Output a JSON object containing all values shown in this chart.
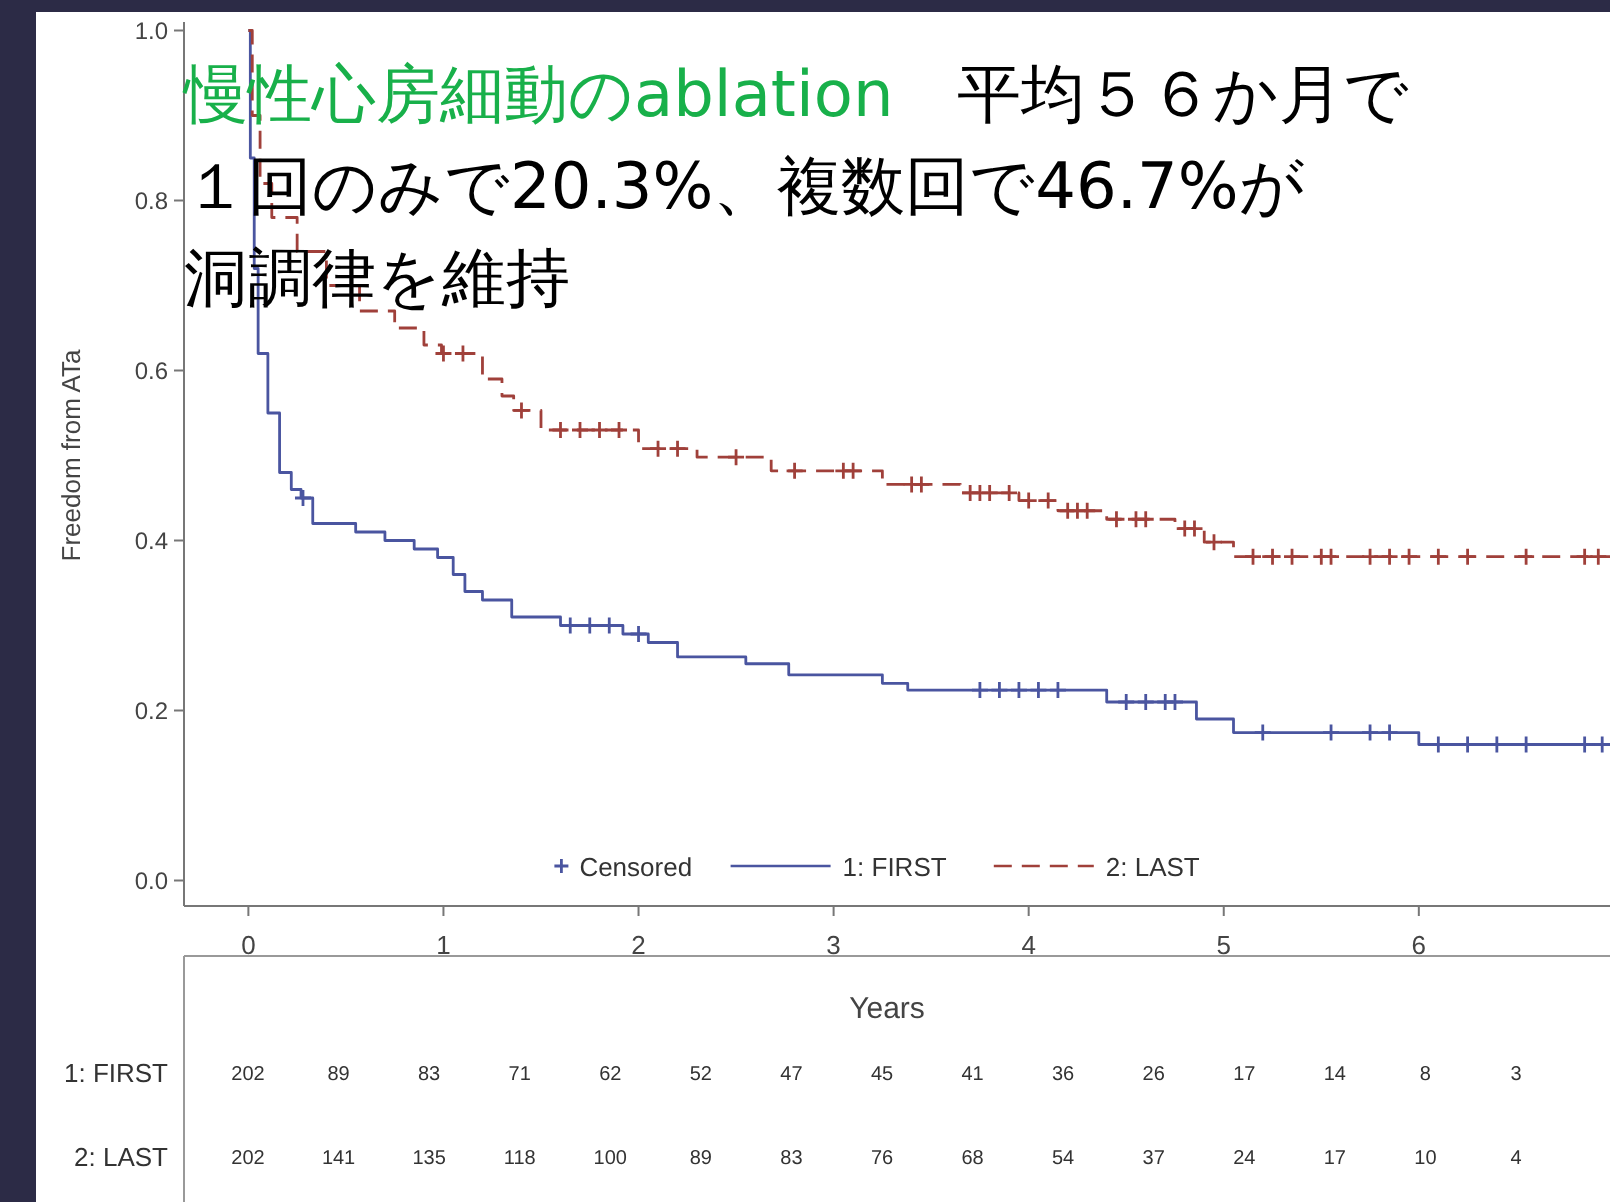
{
  "chart_data": [
    {
      "type": "step",
      "title": "慢性心房細動のablation",
      "subtitle": "平均５６か月で",
      "annotations": [
        "１回のみで20.3%、複数回で46.7%が",
        "洞調律を維持"
      ],
      "xlabel": "Years",
      "ylabel": "Freedom from ATa",
      "xlim": [
        -0.33,
        6.98
      ],
      "ylim": [
        -0.03,
        1.01
      ],
      "xticks": [
        0,
        1,
        2,
        3,
        4,
        5,
        6
      ],
      "yticks": [
        {
          "value": 0,
          "label": "0.0"
        },
        0.2,
        0.4,
        0.6,
        0.8,
        {
          "value": 1,
          "label": "1.0"
        }
      ],
      "grid": false,
      "legend": "bottom",
      "series": [
        {
          "name": "Censored",
          "type": "scatter",
          "marker": "cross",
          "color": "#4a55a0",
          "x": [
            0.28,
            1.65,
            1.75,
            1.85,
            2.0,
            3.75,
            3.85,
            3.95,
            4.05,
            4.15,
            4.5,
            4.6,
            4.7,
            4.75,
            5.2,
            5.55,
            5.75,
            5.85,
            6.1,
            6.25,
            6.4,
            6.55,
            6.85,
            6.94
          ],
          "values": [
            0.45,
            0.3,
            0.3,
            0.3,
            0.29,
            0.224,
            0.224,
            0.224,
            0.224,
            0.224,
            0.21,
            0.21,
            0.21,
            0.21,
            0.174,
            0.174,
            0.174,
            0.174,
            0.16,
            0.16,
            0.16,
            0.16,
            0.16,
            0.16
          ]
        },
        {
          "name": "1: FIRST",
          "line_style": "solid",
          "color": "#4a55a0",
          "x": [
            0,
            0.01,
            0.03,
            0.05,
            0.1,
            0.16,
            0.22,
            0.27,
            0.33,
            0.55,
            0.7,
            0.85,
            0.97,
            1.05,
            1.11,
            1.2,
            1.35,
            1.6,
            1.92,
            2.05,
            2.2,
            2.55,
            2.77,
            3.25,
            3.38,
            4.4,
            4.86,
            5.05,
            6.0,
            6.98
          ],
          "values": [
            1.0,
            0.85,
            0.72,
            0.62,
            0.55,
            0.48,
            0.46,
            0.45,
            0.42,
            0.41,
            0.4,
            0.39,
            0.38,
            0.36,
            0.34,
            0.33,
            0.31,
            0.3,
            0.29,
            0.28,
            0.263,
            0.255,
            0.242,
            0.232,
            0.224,
            0.21,
            0.19,
            0.174,
            0.16,
            0.16
          ]
        },
        {
          "name": "2: LAST",
          "line_style": "dashed",
          "color": "#a0403a",
          "x": [
            0,
            0.02,
            0.06,
            0.12,
            0.25,
            0.4,
            0.57,
            0.75,
            0.9,
            0.99,
            1.2,
            1.3,
            1.36,
            1.5,
            2.0,
            2.3,
            2.68,
            3.25,
            3.65,
            3.95,
            4.15,
            4.4,
            4.75,
            4.9,
            5.05,
            6.98
          ],
          "values": [
            1.0,
            0.9,
            0.82,
            0.78,
            0.74,
            0.7,
            0.67,
            0.65,
            0.63,
            0.62,
            0.59,
            0.57,
            0.553,
            0.53,
            0.508,
            0.498,
            0.482,
            0.466,
            0.456,
            0.447,
            0.435,
            0.425,
            0.414,
            0.398,
            0.381,
            0.381
          ]
        },
        {
          "type": "scatter",
          "marker": "cross",
          "color": "#a0403a",
          "x": [
            1.0,
            1.1,
            1.4,
            1.6,
            1.7,
            1.8,
            1.9,
            2.1,
            2.2,
            2.5,
            2.8,
            3.05,
            3.1,
            3.4,
            3.45,
            3.7,
            3.75,
            3.8,
            3.9,
            4.0,
            4.1,
            4.2,
            4.25,
            4.3,
            4.45,
            4.55,
            4.6,
            4.8,
            4.85,
            4.95,
            5.15,
            5.25,
            5.35,
            5.5,
            5.55,
            5.75,
            5.85,
            5.95,
            6.1,
            6.25,
            6.55,
            6.85,
            6.92
          ],
          "values": [
            0.62,
            0.62,
            0.553,
            0.53,
            0.53,
            0.53,
            0.53,
            0.508,
            0.508,
            0.498,
            0.482,
            0.482,
            0.482,
            0.466,
            0.466,
            0.456,
            0.456,
            0.456,
            0.456,
            0.447,
            0.447,
            0.435,
            0.435,
            0.435,
            0.425,
            0.425,
            0.425,
            0.414,
            0.414,
            0.398,
            0.381,
            0.381,
            0.381,
            0.381,
            0.381,
            0.381,
            0.381,
            0.381,
            0.381,
            0.381,
            0.381,
            0.381,
            0.381
          ]
        }
      ]
    },
    {
      "type": "heatmap",
      "data_labels": true,
      "categories": [
        null,
        null,
        null,
        null,
        null,
        null,
        null,
        null,
        null,
        null,
        null,
        null,
        null,
        null,
        null
      ],
      "y_categories": [
        "1: FIRST",
        "2: LAST"
      ],
      "cells": [
        [
          202,
          89,
          83,
          71,
          62,
          52,
          47,
          45,
          41,
          36,
          26,
          17,
          14,
          8,
          3
        ],
        [
          202,
          141,
          135,
          118,
          100,
          89,
          83,
          76,
          68,
          54,
          37,
          24,
          17,
          10,
          4
        ]
      ]
    }
  ]
}
